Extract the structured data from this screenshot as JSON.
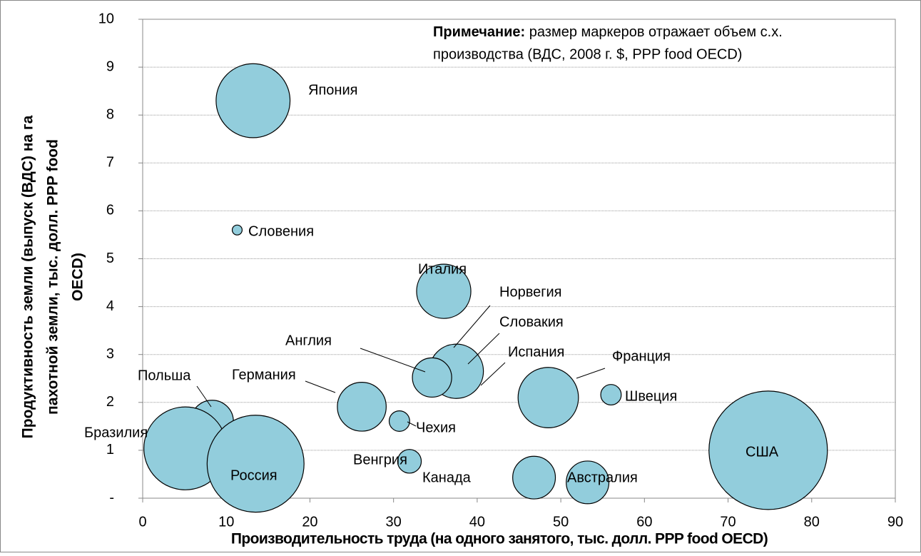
{
  "chart_data": {
    "type": "bubble",
    "note": {
      "label": "Примечание:",
      "lines": [
        "размер маркеров отражает объем с.х.",
        "производства (ВДС, 2008 г. $, PPP food OECD)"
      ]
    },
    "xlabel": "Производительность труда (на одного занятого, тыс. долл. PPP food OECD)",
    "ylabel": [
      "Продуктивность земли (выпуск (ВДС) на га",
      "пахотной земли, тыс. долл. PPP  food",
      "OECD)"
    ],
    "color": "#92cddc",
    "xlim": [
      0,
      90
    ],
    "xticks": [
      0,
      10,
      20,
      30,
      40,
      50,
      60,
      70,
      80,
      90
    ],
    "ylim": [
      0,
      10
    ],
    "yticks": [
      {
        "value": 0,
        "label": "-"
      },
      1,
      2,
      3,
      4,
      5,
      6,
      7,
      8,
      9,
      10
    ],
    "grid": true,
    "labels": [
      "Япония",
      "Словения",
      "Италия",
      "Норвегия",
      "Словакия",
      "Испания",
      "Англия",
      "Франция",
      "Швеция",
      "Германия",
      "Польша",
      "Бразилия",
      "Россия",
      "Чехия",
      "Венгрия",
      "Канада",
      "Австралия",
      "США"
    ],
    "x": [
      13.2,
      11.3,
      36.0,
      36.8,
      38.2,
      37.5,
      34.6,
      48.5,
      56.0,
      26.2,
      8.3,
      5.1,
      13.5,
      30.7,
      31.9,
      46.8,
      53.2,
      74.8
    ],
    "y": [
      8.3,
      5.6,
      4.32,
      3.05,
      2.71,
      2.65,
      2.52,
      2.1,
      2.16,
      1.91,
      1.6,
      1.04,
      0.72,
      1.61,
      0.77,
      0.43,
      0.33,
      1.0
    ],
    "sizes": [
      39,
      0.7,
      21,
      1.5,
      2,
      21,
      11,
      26,
      3,
      17,
      13,
      49,
      67,
      3,
      4,
      13,
      13,
      100
    ]
  }
}
